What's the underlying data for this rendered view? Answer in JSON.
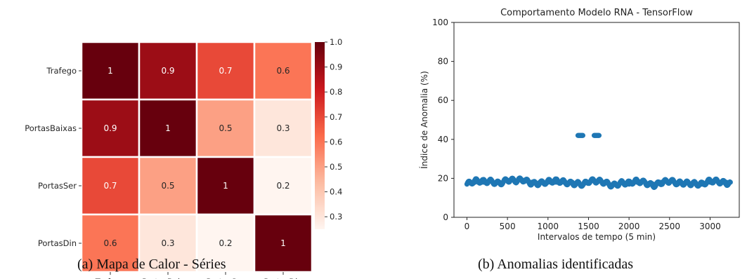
{
  "captions": {
    "a": "(a) Mapa de Calor - Séries",
    "b": "(b) Anomalias identificadas"
  },
  "chart_data": [
    {
      "type": "heatmap",
      "rows": [
        "Trafego",
        "PortasBaixas",
        "PortasSer",
        "PortasDin"
      ],
      "columns": [
        "Trafego",
        "PortasBaixas",
        "PortasSer",
        "PortasDin"
      ],
      "values": [
        [
          1,
          0.9,
          0.7,
          0.6
        ],
        [
          0.9,
          1,
          0.5,
          0.3
        ],
        [
          0.7,
          0.5,
          1,
          0.2
        ],
        [
          0.6,
          0.3,
          0.2,
          1
        ]
      ],
      "cell_labels": [
        [
          "1",
          "0.9",
          "0.7",
          "0.6"
        ],
        [
          "0.9",
          "1",
          "0.5",
          "0.3"
        ],
        [
          "0.7",
          "0.5",
          "1",
          "0.2"
        ],
        [
          "0.6",
          "0.3",
          "0.2",
          "1"
        ]
      ],
      "colormap": "Reds",
      "colorbar": {
        "min": 0.25,
        "max": 1.0,
        "ticks": [
          "1.0",
          "0.9",
          "0.8",
          "0.7",
          "0.6",
          "0.5",
          "0.4",
          "0.3"
        ]
      }
    },
    {
      "type": "scatter",
      "title": "Comportamento Modelo RNA - TensorFlow",
      "xlabel": "Intervalos de tempo (5 min)",
      "ylabel": "Índice de Anomalia (%)",
      "xlim": [
        -160,
        3360
      ],
      "ylim": [
        0,
        100
      ],
      "xticks": [
        "0",
        "500",
        "1000",
        "1500",
        "2000",
        "2500",
        "3000"
      ],
      "yticks": [
        "0",
        "20",
        "40",
        "60",
        "80",
        "100"
      ],
      "color": "#1f77b4",
      "series": [
        {
          "x": [
            0,
            100,
            200,
            300,
            400,
            500,
            600,
            700,
            800,
            900,
            1000,
            1100,
            1200,
            1300,
            1360,
            1440,
            1500,
            1600,
            1700,
            1800,
            1900,
            2000,
            2100,
            2200,
            2300,
            2400,
            2500,
            2600,
            2700,
            2800,
            2900,
            3000,
            3100,
            3200,
            3250
          ],
          "y": [
            17,
            18,
            18,
            19,
            18,
            19,
            18,
            19,
            18,
            18,
            18,
            18,
            18,
            18,
            18,
            17,
            18,
            18,
            18,
            17,
            18,
            17,
            18,
            18,
            17,
            18,
            18,
            17,
            18,
            18,
            17,
            18,
            18,
            18,
            18
          ]
        },
        {
          "x": [
            1370,
            1390,
            1410,
            1430,
            1570,
            1590,
            1610,
            1630
          ],
          "y": [
            42,
            42,
            42,
            42,
            42,
            42,
            42,
            42
          ]
        }
      ]
    }
  ]
}
